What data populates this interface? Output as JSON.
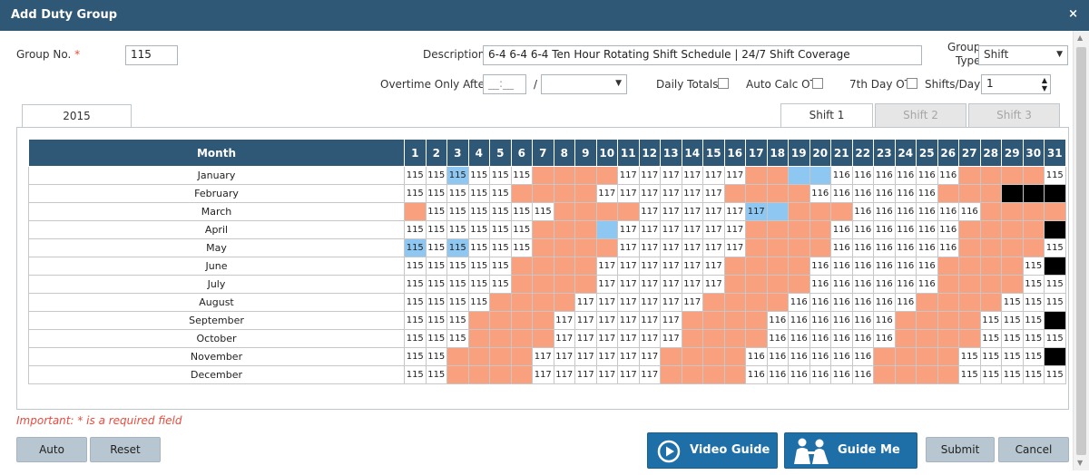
{
  "window": {
    "title": "Add Duty Group",
    "close_glyph": "×"
  },
  "form": {
    "group_no_label": "Group No.",
    "required_mark": "*",
    "group_no_value": "115",
    "description_label": "Description",
    "description_value": "6-4 6-4 6-4 Ten Hour Rotating Shift Schedule | 24/7 Shift Coverage",
    "group_type_label_1": "Group",
    "group_type_label_2": "Type",
    "group_type_value": "Shift",
    "overtime_label": "Overtime Only After",
    "overtime_time_placeholder": "__:__",
    "overtime_slash": "/",
    "overtime_period_value": "",
    "daily_totals_label": "Daily Totals",
    "auto_calc_label": "Auto Calc OT",
    "seventh_day_label": "7th Day OT",
    "shifts_per_day_label": "Shifts/Day",
    "shifts_per_day_value": "1"
  },
  "tabs": {
    "year": "2015",
    "shift1": "Shift 1",
    "shift2": "Shift 2",
    "shift3": "Shift 3"
  },
  "calendar": {
    "month_header": "Month",
    "days": [
      "1",
      "2",
      "3",
      "4",
      "5",
      "6",
      "7",
      "8",
      "9",
      "10",
      "11",
      "12",
      "13",
      "14",
      "15",
      "16",
      "17",
      "18",
      "19",
      "20",
      "21",
      "22",
      "23",
      "24",
      "25",
      "26",
      "27",
      "28",
      "29",
      "30",
      "31"
    ],
    "colors": {
      "off": "#f9a07e",
      "highlight": "#8ec8f2",
      "invalid": "#000000"
    },
    "rows": [
      {
        "month": "January",
        "cells": [
          "115",
          "115",
          "B115",
          "115",
          "115",
          "115",
          "O",
          "O",
          "O",
          "O",
          "117",
          "117",
          "117",
          "117",
          "117",
          "117",
          "O",
          "O",
          "B",
          "B",
          "116",
          "116",
          "116",
          "116",
          "116",
          "116",
          "O",
          "O",
          "O",
          "O",
          "115"
        ]
      },
      {
        "month": "February",
        "cells": [
          "115",
          "115",
          "115",
          "115",
          "115",
          "O",
          "O",
          "O",
          "O",
          "117",
          "117",
          "117",
          "117",
          "117",
          "117",
          "O",
          "O",
          "O",
          "O",
          "116",
          "116",
          "116",
          "116",
          "116",
          "116",
          "O",
          "O",
          "O",
          "K",
          "K",
          "K"
        ]
      },
      {
        "month": "March",
        "cells": [
          "O",
          "115",
          "115",
          "115",
          "115",
          "115",
          "115",
          "O",
          "O",
          "O",
          "O",
          "117",
          "117",
          "117",
          "117",
          "117",
          "B117",
          "B",
          "O",
          "O",
          "O",
          "116",
          "116",
          "116",
          "116",
          "116",
          "116",
          "O",
          "O",
          "O",
          "O"
        ]
      },
      {
        "month": "April",
        "cells": [
          "115",
          "115",
          "115",
          "115",
          "115",
          "115",
          "O",
          "O",
          "O",
          "B",
          "117",
          "117",
          "117",
          "117",
          "117",
          "117",
          "O",
          "O",
          "O",
          "O",
          "116",
          "116",
          "116",
          "116",
          "116",
          "116",
          "O",
          "O",
          "O",
          "O",
          "K"
        ]
      },
      {
        "month": "May",
        "cells": [
          "B115",
          "115",
          "B115",
          "115",
          "115",
          "115",
          "O",
          "O",
          "O",
          "O",
          "117",
          "117",
          "117",
          "117",
          "117",
          "117",
          "O",
          "O",
          "O",
          "O",
          "116",
          "116",
          "116",
          "116",
          "116",
          "116",
          "O",
          "O",
          "O",
          "O",
          "115"
        ]
      },
      {
        "month": "June",
        "cells": [
          "115",
          "115",
          "115",
          "115",
          "115",
          "O",
          "O",
          "O",
          "O",
          "117",
          "117",
          "117",
          "117",
          "117",
          "117",
          "O",
          "O",
          "O",
          "O",
          "116",
          "116",
          "116",
          "116",
          "116",
          "116",
          "O",
          "O",
          "O",
          "O",
          "115",
          "K"
        ]
      },
      {
        "month": "July",
        "cells": [
          "115",
          "115",
          "115",
          "115",
          "115",
          "O",
          "O",
          "O",
          "O",
          "117",
          "117",
          "117",
          "117",
          "117",
          "117",
          "O",
          "O",
          "O",
          "O",
          "116",
          "116",
          "116",
          "116",
          "116",
          "116",
          "O",
          "O",
          "O",
          "O",
          "115",
          "115"
        ]
      },
      {
        "month": "August",
        "cells": [
          "115",
          "115",
          "115",
          "115",
          "O",
          "O",
          "O",
          "O",
          "117",
          "117",
          "117",
          "117",
          "117",
          "117",
          "O",
          "O",
          "O",
          "O",
          "116",
          "116",
          "116",
          "116",
          "116",
          "116",
          "O",
          "O",
          "O",
          "O",
          "115",
          "115",
          "115"
        ]
      },
      {
        "month": "September",
        "cells": [
          "115",
          "115",
          "115",
          "O",
          "O",
          "O",
          "O",
          "117",
          "117",
          "117",
          "117",
          "117",
          "117",
          "O",
          "O",
          "O",
          "O",
          "116",
          "116",
          "116",
          "116",
          "116",
          "116",
          "O",
          "O",
          "O",
          "O",
          "115",
          "115",
          "115",
          "K"
        ]
      },
      {
        "month": "October",
        "cells": [
          "115",
          "115",
          "115",
          "O",
          "O",
          "O",
          "O",
          "117",
          "117",
          "117",
          "117",
          "117",
          "117",
          "O",
          "O",
          "O",
          "O",
          "116",
          "116",
          "116",
          "116",
          "116",
          "116",
          "O",
          "O",
          "O",
          "O",
          "115",
          "115",
          "115",
          "115"
        ]
      },
      {
        "month": "November",
        "cells": [
          "115",
          "115",
          "O",
          "O",
          "O",
          "O",
          "117",
          "117",
          "117",
          "117",
          "117",
          "117",
          "O",
          "O",
          "O",
          "O",
          "116",
          "116",
          "116",
          "116",
          "116",
          "116",
          "O",
          "O",
          "O",
          "O",
          "115",
          "115",
          "115",
          "115",
          "K"
        ]
      },
      {
        "month": "December",
        "cells": [
          "115",
          "115",
          "O",
          "O",
          "O",
          "O",
          "117",
          "117",
          "117",
          "117",
          "117",
          "117",
          "O",
          "O",
          "O",
          "O",
          "116",
          "116",
          "116",
          "116",
          "116",
          "116",
          "O",
          "O",
          "O",
          "O",
          "115",
          "115",
          "115",
          "115",
          "115"
        ]
      }
    ]
  },
  "footer": {
    "important_note": "Important: * is a required field",
    "auto_label": "Auto",
    "reset_label": "Reset",
    "video_guide_label": "Video Guide",
    "guide_me_label": "Guide Me",
    "submit_label": "Submit",
    "cancel_label": "Cancel"
  },
  "icons": {
    "close": "close-icon",
    "video": "play-circle-icon",
    "guide": "people-icon",
    "dropdown": "chevron-down-icon"
  }
}
